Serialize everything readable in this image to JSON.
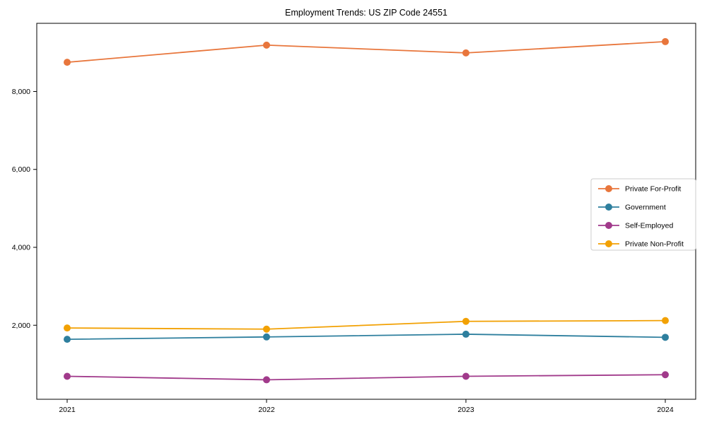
{
  "chart_data": {
    "type": "line",
    "title": "Employment Trends: US ZIP Code 24551",
    "xlabel": "",
    "ylabel": "",
    "categories": [
      "2021",
      "2022",
      "2023",
      "2024"
    ],
    "series": [
      {
        "name": "Private For-Profit",
        "color": "#e8763c",
        "marker": "circle",
        "values": [
          8750,
          9190,
          8990,
          9280
        ]
      },
      {
        "name": "Government",
        "color": "#2e7f9e",
        "marker": "circle",
        "values": [
          1640,
          1700,
          1770,
          1690
        ]
      },
      {
        "name": "Self-Employed",
        "color": "#a13a8b",
        "marker": "circle",
        "values": [
          690,
          600,
          690,
          730
        ]
      },
      {
        "name": "Private Non-Profit",
        "color": "#f2a104",
        "marker": "circle",
        "values": [
          1930,
          1900,
          2100,
          2120
        ]
      }
    ],
    "ylim": [
      100,
      9750
    ],
    "yticks": [
      2000,
      4000,
      6000,
      8000
    ],
    "ytick_labels": [
      "2,000",
      "4,000",
      "6,000",
      "8,000"
    ],
    "grid": false,
    "legend_position": "right",
    "axis_color": "#000000",
    "legend_border_color": "#cccccc",
    "background_color": "#ffffff"
  }
}
